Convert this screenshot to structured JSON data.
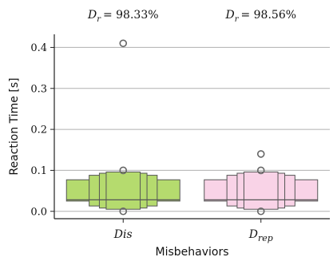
{
  "chart_data": {
    "type": "boxplot",
    "ylabel": "Reaction Time [s]",
    "xlabel": "Misbehaviors",
    "ylim": [
      -0.018,
      0.432
    ],
    "yticks": [
      0.0,
      0.1,
      0.2,
      0.3,
      0.4
    ],
    "ytick_labels": [
      "0.0",
      "0.1",
      "0.2",
      "0.3",
      "0.4"
    ],
    "grid": true,
    "categories": [
      {
        "label": "Dis",
        "label_sub": "",
        "annotation_text": "= 98.33%",
        "annotation_sub": "r",
        "color": "#b5db6e",
        "letter_values": [
          {
            "low": 0.025,
            "high": 0.077
          },
          {
            "low": 0.013,
            "high": 0.088
          },
          {
            "low": 0.008,
            "high": 0.093
          },
          {
            "low": 0.005,
            "high": 0.096
          }
        ],
        "median": 0.028,
        "outliers": [
          0.0,
          0.1,
          0.41
        ]
      },
      {
        "label": "D",
        "label_sub": "rep",
        "annotation_text": "= 98.56%",
        "annotation_sub": "r",
        "color": "#f9d3e7",
        "letter_values": [
          {
            "low": 0.025,
            "high": 0.077
          },
          {
            "low": 0.013,
            "high": 0.088
          },
          {
            "low": 0.008,
            "high": 0.093
          },
          {
            "low": 0.005,
            "high": 0.096
          }
        ],
        "median": 0.028,
        "outliers": [
          0.0,
          0.1,
          0.14
        ]
      }
    ],
    "colors": {
      "edge": "#555555",
      "grid": "#b0b0b0",
      "axis": "#222222"
    }
  }
}
